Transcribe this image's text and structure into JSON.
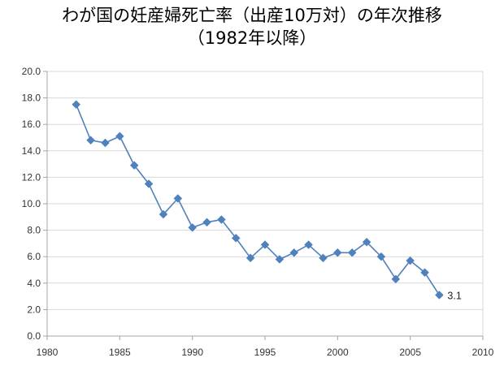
{
  "chart_data": {
    "type": "line",
    "title": "わが国の妊産婦死亡率（出産10万対）の年次推移",
    "subtitle": "（1982年以降）",
    "xlabel": "",
    "ylabel": "",
    "xlim": [
      1980,
      2010
    ],
    "ylim": [
      0,
      20
    ],
    "x_ticks": [
      "1980",
      "1985",
      "1990",
      "1995",
      "2000",
      "2005",
      "2010"
    ],
    "y_ticks": [
      "0.0",
      "2.0",
      "4.0",
      "6.0",
      "8.0",
      "10.0",
      "12.0",
      "14.0",
      "16.0",
      "18.0",
      "20.0"
    ],
    "grid": true,
    "legend": "none",
    "marker": "diamond",
    "series": [
      {
        "color": "#4F81BD",
        "x": [
          1982,
          1983,
          1984,
          1985,
          1986,
          1987,
          1988,
          1989,
          1990,
          1991,
          1992,
          1993,
          1994,
          1995,
          1996,
          1997,
          1998,
          1999,
          2000,
          2001,
          2002,
          2003,
          2004,
          2005,
          2006,
          2007
        ],
        "values": [
          17.5,
          14.8,
          14.6,
          15.1,
          12.9,
          11.5,
          9.2,
          10.4,
          8.2,
          8.6,
          8.8,
          7.4,
          5.9,
          6.9,
          5.8,
          6.3,
          6.9,
          5.9,
          6.3,
          6.3,
          7.1,
          6.0,
          4.3,
          5.7,
          4.8,
          3.1
        ]
      }
    ],
    "annotations": [
      {
        "x": 2007,
        "y": 3.1,
        "text": "3.1"
      }
    ]
  },
  "colors": {
    "series": "#4F81BD",
    "gridline": "#D9D9D9",
    "axis": "#A6A6A6"
  }
}
